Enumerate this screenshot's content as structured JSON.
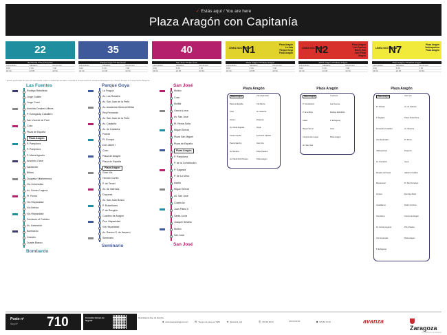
{
  "header": {
    "marker": "✓",
    "you_are_here": "Estás aquí / You are here",
    "stop_name": "Plaza Aragón con Capitanía"
  },
  "lines": [
    {
      "code": "22",
      "color": "#1f8fa0",
      "sched_title": "Bombardo ⟶ Las Fuentes"
    },
    {
      "code": "35",
      "color": "#3f5a9a",
      "sched_title": "Parque Goya ⟶ Seminario"
    },
    {
      "code": "40",
      "color": "#b5206c",
      "sched_title": "San José ⟶ San José"
    },
    {
      "code": "N1",
      "color": "#3d3a6e",
      "accent": "#e2d22c",
      "sched_title": "Plaza Aragón ⟶ Plaza Aragón",
      "night": "LÍNEA NOCTURNA",
      "route": "Plaza Aragón La Jota Parque Goya Plaza Aragón"
    },
    {
      "code": "N2",
      "color": "#3d3a6e",
      "accent": "#d8312c",
      "sched_title": "Plaza Aragón ⟶ Plaza Aragón",
      "night": "LÍNEA NOCTURNA",
      "route": "Plaza Aragón Las Fuentes Barrio San José Plaza Aragón"
    },
    {
      "code": "N7",
      "color": "#3d3a6e",
      "accent": "#f2ea3a",
      "sched_title": "Plaza Aragón ⟶ Plaza Aragón",
      "night": "LÍNEA NOCTURNA",
      "route": "Plaza Aragón Valdespartera Plaza Aragón"
    }
  ],
  "sched_rows": [
    [
      "Laborables",
      "Sábados",
      "Domingos"
    ],
    [
      "6:00",
      "6:30",
      "7:00"
    ],
    [
      "22:40",
      "22:45",
      "22:40"
    ]
  ],
  "note": "* Horario aproximado de paso por esta parada, sujeto a condiciones de tráfico. Consulte el horario exacto en www.avanzazaragoza.com / Tiempo de paso en la app Avanza Zaragoza",
  "line22": {
    "title": "Las Fuentes",
    "end": "Bombardo",
    "stops": [
      "Rodrigo Rebolledo",
      "Jorge Guillén",
      "Jorge Cocci",
      "Avenida Cesáreo Alierta",
      "P. Echegaray Caballero",
      "San Vicente de Paúl",
      "Coso",
      "Plaza de España",
      "Plaza Aragón",
      "P. Pamplona",
      "P. Pamplona",
      "P. María Agustín",
      "Anselmo Clavé",
      "Santander",
      "Bilbao",
      "Duquesa Villahermosa",
      "Vía Universitas",
      "Av. Gómez Laguna",
      "Pl. Roma",
      "Vía Hispanidad",
      "Vía Ibérica",
      "Vía Hispanidad",
      "Fernando el Católico",
      "Av. Ilustración",
      "Bombardo",
      "Gracián",
      "Duarte Blasco"
    ]
  },
  "line35": {
    "title": "Parque Goya",
    "end": "Seminario",
    "stops": [
      "La Fragua",
      "Av. Los Rosales",
      "Av. San Juan de la Peña",
      "Av. Academia General Militar",
      "Rey Fernando",
      "Av. San Juan de la Peña",
      "Av. Cataluña",
      "Av. de Cataluña",
      "Puente",
      "Pl. Europa",
      "Don Jaime I",
      "Coso",
      "Plaza de Aragón",
      "Plaza de España",
      "Plaza Aragón",
      "Gran Vía",
      "Hernán Cortés",
      "P. de Teruel",
      "Av. de Valencia",
      "Duquesa",
      "Av. San Juan Bosco",
      "P. Ruiseñores",
      "P. de Renglón",
      "Cuadros de Aragón",
      "Pza. Hispanidad",
      "Vía Hispanidad",
      "Av. Ramón S. de Navarro",
      "Seminario"
    ]
  },
  "line40": {
    "title": "San José",
    "end": "San José",
    "stops": [
      "Molino",
      "Coso",
      "Molilla",
      "García Lorca",
      "Av. San José",
      "Pl. Reina Sofía",
      "Miguel Servet",
      "Plaza San Miguel",
      "Plaza de España",
      "Plaza Aragón",
      "P. Pamplona",
      "P. de la Constitución",
      "P. Sagasta",
      "P. de La Mina",
      "Asalto",
      "Miguel Servet",
      "Av. San José",
      "Cuarta Av.",
      "Juan Pablo II",
      "Santa Lucía",
      "Joaquín Sestelo",
      "Molino",
      "San José"
    ]
  },
  "n1": {
    "title": "Plaza Aragón",
    "stops": [
      "Plaza Aragón",
      "Plaza de España",
      "Coso",
      "Jaime I",
      "Av. César Augusto",
      "Conde Aranda",
      "Puerta Sancho",
      "Av. Navarra",
      "Av. Pablo Ruiz Picasso",
      "Vía Hispanidad",
      "Vía Ibérica",
      "Av. Valencia",
      "Duquesa",
      "Goya",
      "Fernando Católico",
      "Gran Vía",
      "Plaza Paraíso",
      "Plaza Aragón"
    ]
  },
  "n2": {
    "title": "Plaza Aragón",
    "stops": [
      "Plaza Aragón",
      "P. Constitución",
      "P. de la Mina",
      "Asalto",
      "Miguel Servet",
      "Compromiso Caspe",
      "Av. San José",
      "Cuarta Av.",
      "Las Fuentes",
      "Rodrigo Rebolledo",
      "P. Echegaray",
      "Coso",
      "Plaza Aragón"
    ]
  },
  "n7": {
    "title": "Plaza Aragón",
    "stops": [
      "Plaza Aragón",
      "Pl. Paraíso",
      "P. Sagasta",
      "Fernando el Católico",
      "Vía Hispanidad",
      "Valdespartera",
      "Av. Ilustración",
      "Rosales del Canal",
      "Montecanal",
      "Arcosur",
      "Casablanca",
      "Vía Ibérica",
      "Av. Gómez Laguna",
      "Vía Universitas",
      "P. Echegaray",
      "Gran Vía",
      "Av. de Valencia",
      "Paseo Ruiseñores",
      "Av. Valencia",
      "Pl. Roma",
      "Duquesa",
      "Goya",
      "Isabel la Católica",
      "Pl. San Francisco",
      "Domingo Miral",
      "Pedro Cerbuna",
      "Corona de Aragón",
      "Pza. Paraíso",
      "Plaza Aragón"
    ]
  },
  "footer": {
    "poste_label": "Poste nº",
    "stop_label": "Stop Nº",
    "poste_number": "710",
    "consult": "Consulta tiempo de llegada",
    "store": "Descarga la App de Avanza",
    "web": "www.avanzazaragoza.com",
    "mail": "Tiempo de paso por SMS",
    "tw": "@avanza_zgz",
    "tel1": "976 00 00 00",
    "tel2": "976 54 00 00",
    "tel3": "976 52 70 00",
    "brand": "avanza",
    "city": "Zaragoza",
    "legal": "Ayuntamiento de Zaragoza"
  }
}
